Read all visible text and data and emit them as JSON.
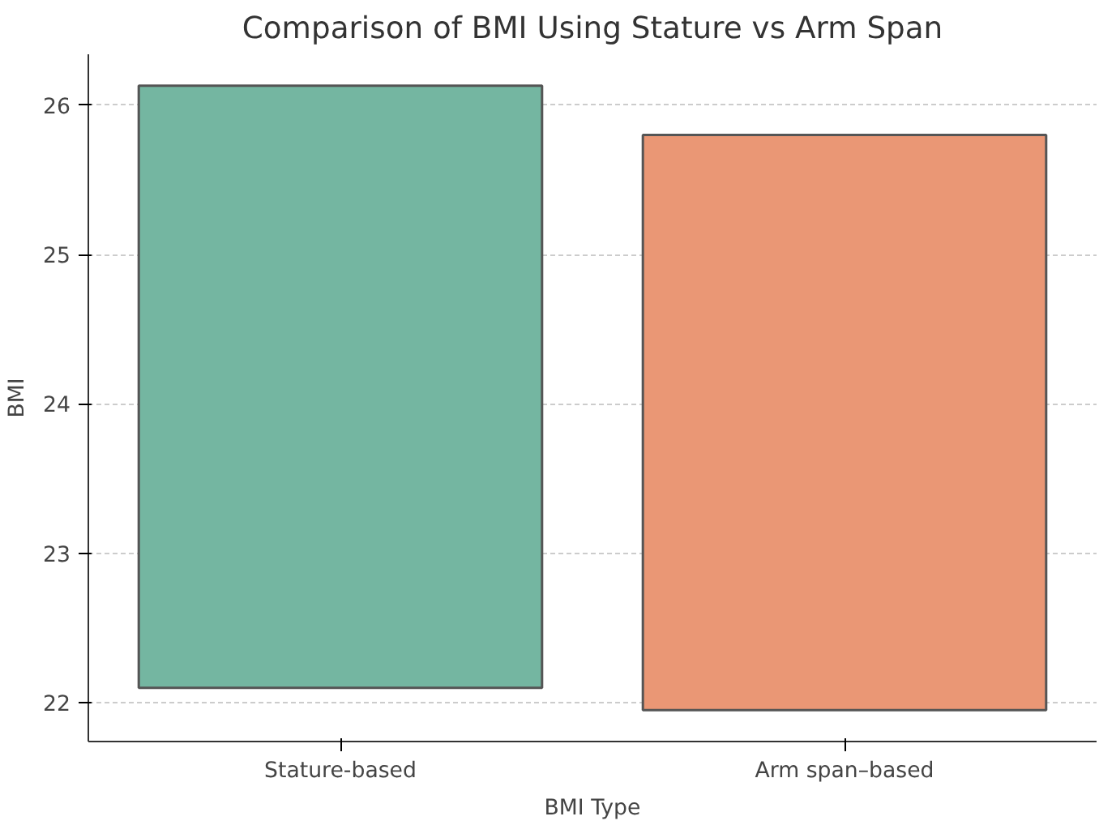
{
  "chart_data": {
    "type": "bar",
    "title": "Comparison of BMI Using Stature vs Arm Span",
    "xlabel": "BMI Type",
    "ylabel": "BMI",
    "categories": [
      "Stature-based",
      "Arm span–based"
    ],
    "base": [
      22.1,
      21.95
    ],
    "values": [
      4.03,
      3.85
    ],
    "colors": [
      "#74b6a1",
      "#ea9775"
    ],
    "ylim": [
      21.74,
      26.34
    ],
    "yticks": [
      22,
      23,
      24,
      25,
      26
    ],
    "grid": "y"
  }
}
